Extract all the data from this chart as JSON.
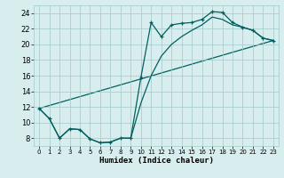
{
  "background_color": "#d8eeee",
  "grid_color": "#a0c8c8",
  "line_color": "#006060",
  "xlabel": "Humidex (Indice chaleur)",
  "xlabel_fontsize": 6.5,
  "ytick_fontsize": 6,
  "xtick_fontsize": 5,
  "ylim": [
    7.0,
    25.0
  ],
  "xlim": [
    -0.5,
    23.5
  ],
  "yticks": [
    8,
    10,
    12,
    14,
    16,
    18,
    20,
    22,
    24
  ],
  "xticks": [
    0,
    1,
    2,
    3,
    4,
    5,
    6,
    7,
    8,
    9,
    10,
    11,
    12,
    13,
    14,
    15,
    16,
    17,
    18,
    19,
    20,
    21,
    22,
    23
  ],
  "line1_x": [
    0,
    1,
    2,
    3,
    4,
    5,
    6,
    7,
    8,
    9,
    10,
    11,
    12,
    13,
    14,
    15,
    16,
    17,
    18,
    19,
    20,
    21,
    22,
    23
  ],
  "line1_y": [
    11.8,
    10.5,
    8.0,
    9.2,
    9.1,
    7.9,
    7.4,
    7.5,
    8.0,
    8.0,
    15.8,
    22.8,
    21.0,
    22.5,
    22.7,
    22.8,
    23.2,
    24.2,
    24.1,
    22.8,
    22.2,
    21.8,
    20.8,
    20.5
  ],
  "line2_x": [
    0,
    1,
    2,
    3,
    4,
    5,
    6,
    7,
    8,
    9,
    10,
    11,
    12,
    13,
    14,
    15,
    16,
    17,
    18,
    19,
    20,
    21,
    22,
    23
  ],
  "line2_y": [
    11.8,
    10.5,
    8.0,
    9.2,
    9.1,
    7.9,
    7.4,
    7.5,
    8.0,
    8.0,
    12.5,
    16.0,
    18.5,
    20.0,
    21.0,
    21.8,
    22.5,
    23.5,
    23.2,
    22.5,
    22.2,
    21.8,
    20.8,
    20.5
  ],
  "line3_x": [
    0,
    23
  ],
  "line3_y": [
    11.8,
    20.5
  ],
  "linewidth": 0.9,
  "markersize": 3.5,
  "markeredgewidth": 0.9
}
